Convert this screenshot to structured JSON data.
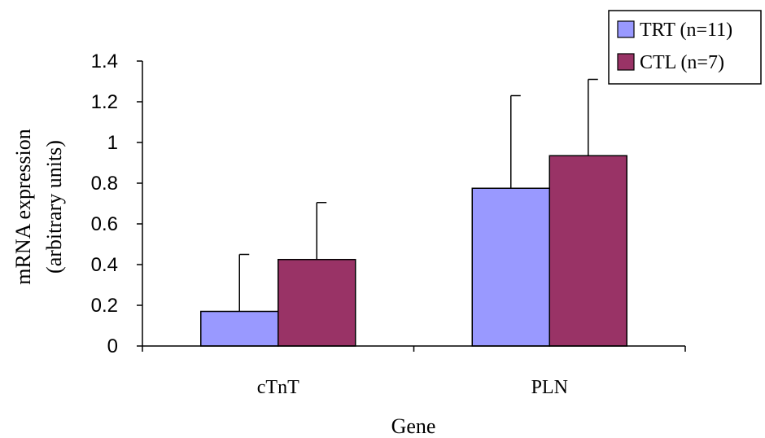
{
  "chart_data": {
    "type": "bar",
    "categories": [
      "cTnT",
      "PLN"
    ],
    "series": [
      {
        "name": "TRT (n=11)",
        "values": [
          0.17,
          0.775
        ],
        "error": [
          0.28,
          0.455
        ],
        "color": "#9999ff"
      },
      {
        "name": "CTL (n=7)",
        "values": [
          0.425,
          0.935
        ],
        "error": [
          0.28,
          0.375
        ],
        "color": "#993366"
      }
    ],
    "xlabel": "Gene",
    "ylabel_lines": [
      "mRNA expression",
      "(arbitrary units)"
    ],
    "ylim": [
      0,
      1.4
    ],
    "yticks": [
      "0",
      "0.2",
      "0.4",
      "0.6",
      "0.8",
      "1",
      "1.2",
      "1.4"
    ],
    "grid": false,
    "legend_position": "top-right"
  }
}
